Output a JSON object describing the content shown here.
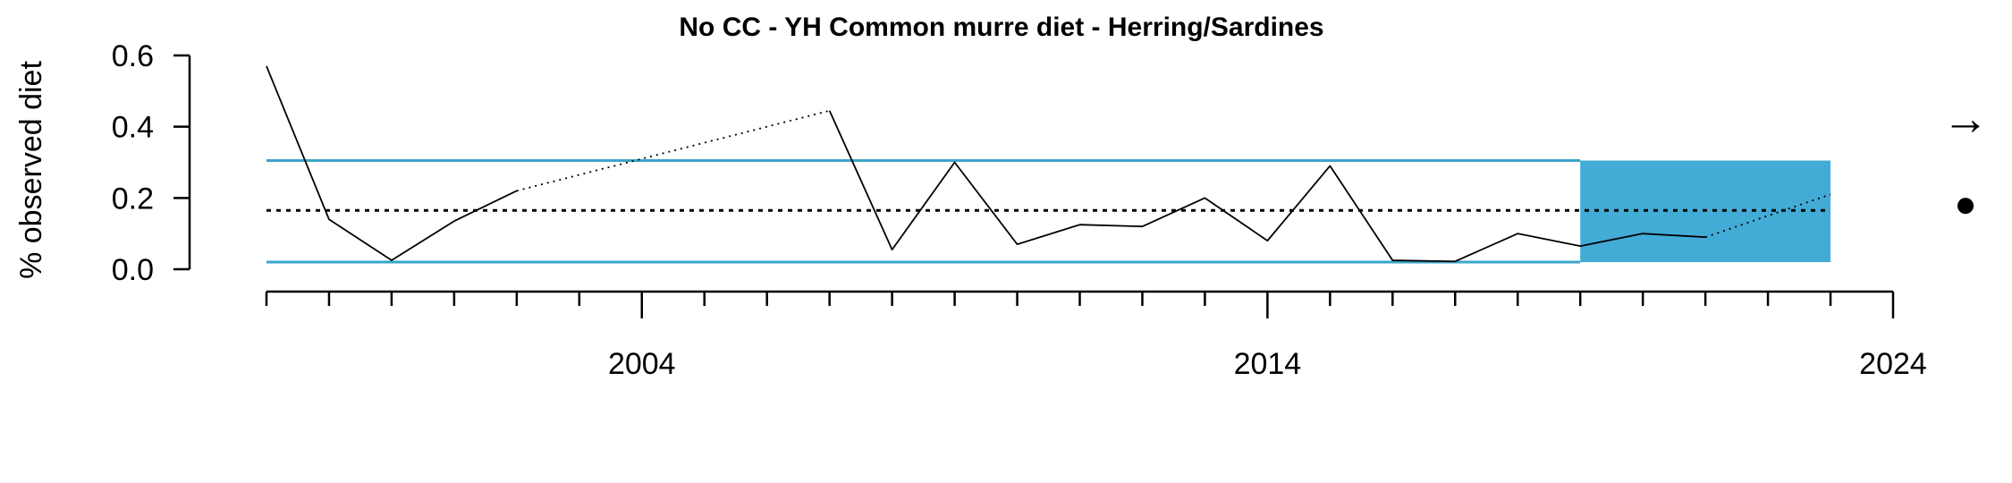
{
  "chart_data": {
    "type": "line",
    "title": "No CC - YH Common murre diet - Herring/Sardines",
    "xlabel": "",
    "ylabel": "% observed diet",
    "xlim": [
      1998,
      2024
    ],
    "ylim": [
      0.0,
      0.6
    ],
    "y_ticks": [
      0.0,
      0.2,
      0.4,
      0.6
    ],
    "y_tick_labels": [
      "0.0",
      "0.2",
      "0.4",
      "0.6"
    ],
    "x_major_ticks": [
      2004,
      2014,
      2024
    ],
    "x_major_tick_labels": [
      "2004",
      "2014",
      "2024"
    ],
    "x_minor_ticks": [
      1998,
      1999,
      2000,
      2001,
      2002,
      2003,
      2004,
      2005,
      2006,
      2007,
      2008,
      2009,
      2010,
      2011,
      2012,
      2013,
      2014,
      2015,
      2016,
      2017,
      2018,
      2019,
      2020,
      2021,
      2022,
      2023,
      2024
    ],
    "series": [
      {
        "x": [
          1998,
          1999,
          2000,
          2001,
          2002,
          2007,
          2008,
          2009,
          2010,
          2011,
          2012,
          2013,
          2014,
          2015,
          2016,
          2017,
          2018,
          2019,
          2020,
          2021,
          2023
        ],
        "values": [
          0.57,
          0.14,
          0.025,
          0.135,
          0.22,
          0.445,
          0.055,
          0.3,
          0.07,
          0.125,
          0.12,
          0.2,
          0.08,
          0.29,
          0.025,
          0.022,
          0.1,
          0.065,
          0.1,
          0.09,
          0.21
        ]
      }
    ],
    "gap_segments_dotted": [
      [
        2002,
        2007
      ],
      [
        2021,
        2023
      ]
    ],
    "mean": 0.165,
    "upper_band": 0.305,
    "lower_band": 0.02,
    "highlight_window": [
      2019,
      2023
    ],
    "trend_symbol": "→",
    "mean_symbol": "●",
    "colors": {
      "line": "#000000",
      "band": "#3aa6c9",
      "highlight": "#43acd6",
      "mean_line": "#000000"
    },
    "grid": false,
    "legend": "none"
  }
}
